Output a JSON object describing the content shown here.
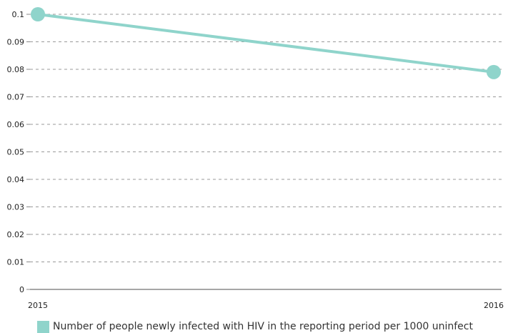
{
  "chart_data": {
    "type": "line",
    "x": [
      "2015",
      "2016"
    ],
    "series": [
      {
        "name": "Number of people newly infected with HIV in the reporting period per 1000 uninfect",
        "values": [
          0.1,
          0.079
        ],
        "color": "#8fd4cb"
      }
    ],
    "yticks": [
      0,
      0.01,
      0.02,
      0.03,
      0.04,
      0.05,
      0.06,
      0.07,
      0.08,
      0.09,
      0.1
    ],
    "ytick_labels": [
      "0",
      "0.01",
      "0.02",
      "0.03",
      "0.04",
      "0.05",
      "0.06",
      "0.07",
      "0.08",
      "0.09",
      "0.1"
    ],
    "ylim": [
      0,
      0.1
    ],
    "grid": true,
    "legend_position": "bottom-left",
    "title": "",
    "xlabel": "",
    "ylabel": ""
  }
}
